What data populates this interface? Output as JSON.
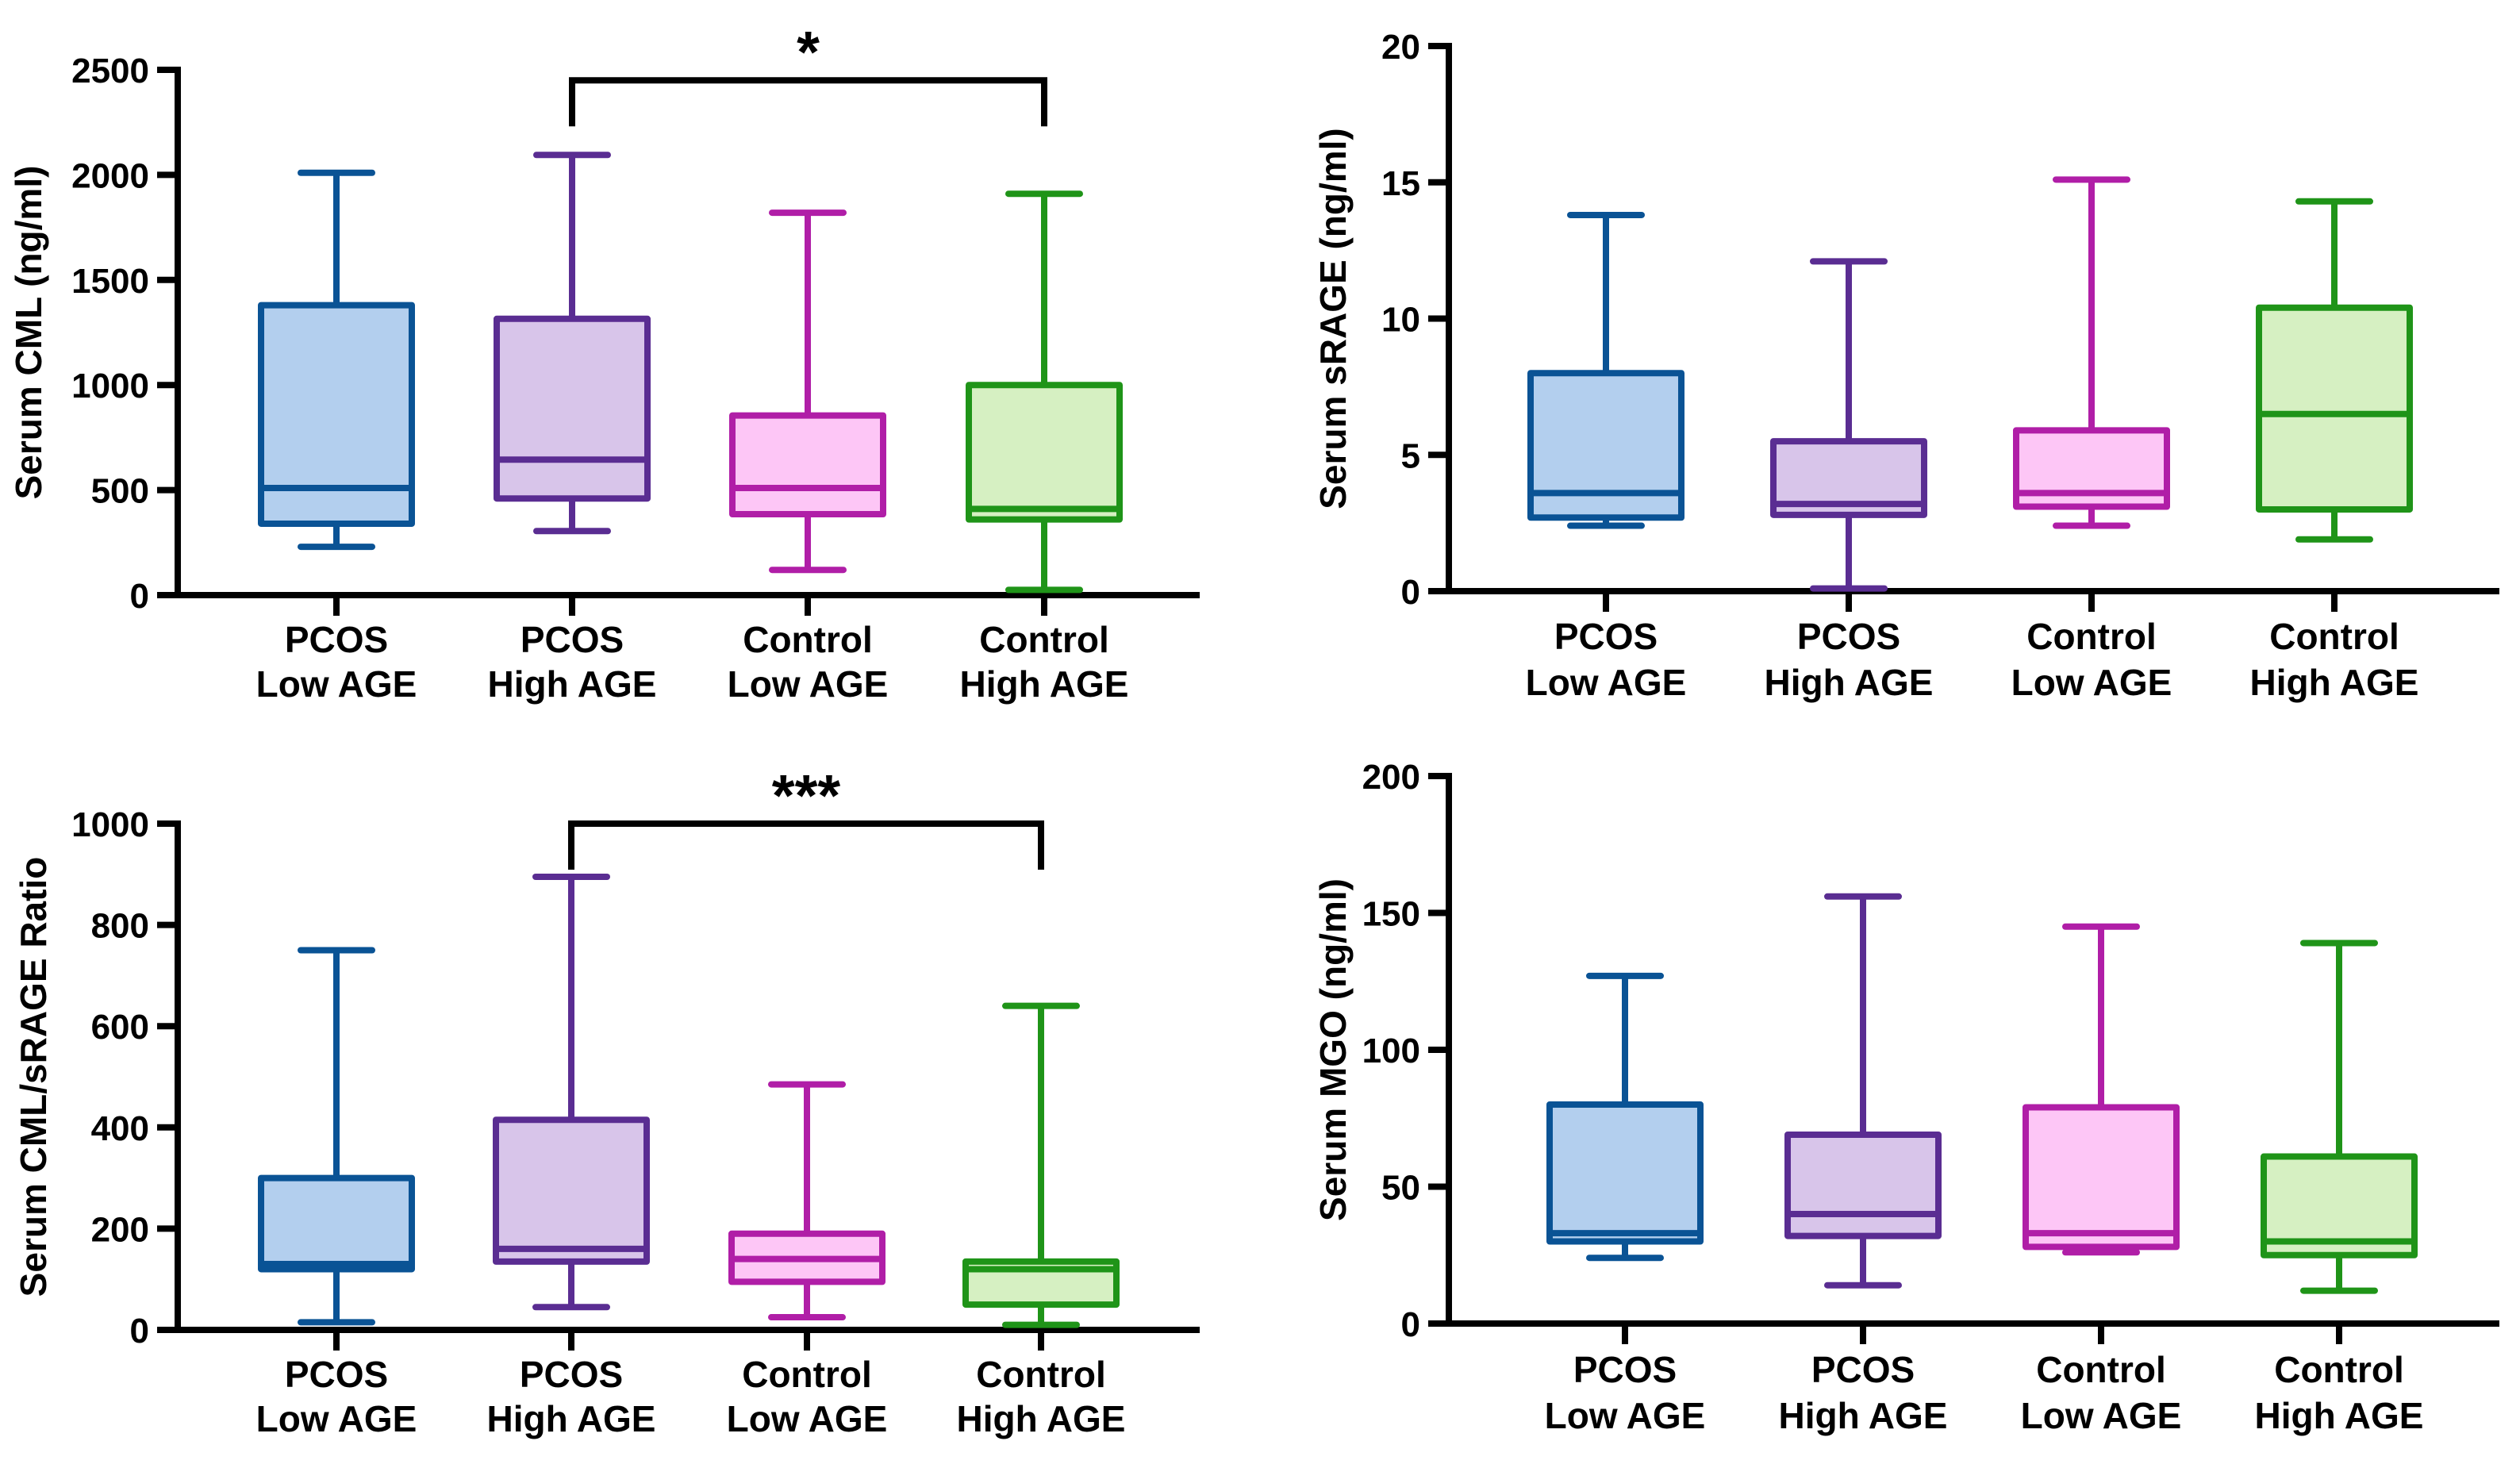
{
  "colors": {
    "axis": "#000000",
    "groups": [
      {
        "stroke": "#0a5395",
        "fill": "#b3cfee"
      },
      {
        "stroke": "#5a2d92",
        "fill": "#d8c5ea"
      },
      {
        "stroke": "#b01ea7",
        "fill": "#fdc6f6"
      },
      {
        "stroke": "#1f9418",
        "fill": "#d6f0c2"
      }
    ]
  },
  "chart_data": [
    {
      "type": "box",
      "ylabel": "Serum CML (ng/ml)",
      "ylim": [
        0,
        2500
      ],
      "yticks": [
        "0",
        "500",
        "1000",
        "1500",
        "2000",
        "2500"
      ],
      "yticks_values": [
        0,
        500,
        1000,
        1500,
        2000,
        2500
      ],
      "categories": [
        {
          "line1": "PCOS",
          "line2": "Low AGE"
        },
        {
          "line1": "PCOS",
          "line2": "High AGE"
        },
        {
          "line1": "Control",
          "line2": "Low AGE"
        },
        {
          "line1": "Control",
          "line2": "High AGE"
        }
      ],
      "boxes": [
        {
          "min": 230,
          "q1": 340,
          "median": 510,
          "q3": 1380,
          "max": 2010
        },
        {
          "min": 305,
          "q1": 460,
          "median": 645,
          "q3": 1315,
          "max": 2095
        },
        {
          "min": 120,
          "q1": 385,
          "median": 510,
          "q3": 855,
          "max": 1820
        },
        {
          "min": 25,
          "q1": 360,
          "median": 410,
          "q3": 1000,
          "max": 1910
        }
      ],
      "significance": {
        "from": 1,
        "to": 3,
        "label": "*",
        "y": 2450
      }
    },
    {
      "type": "box",
      "ylabel": "Serum sRAGE (ng/ml)",
      "ylim": [
        0,
        20
      ],
      "yticks": [
        "0",
        "5",
        "10",
        "15",
        "20"
      ],
      "yticks_values": [
        0,
        5,
        10,
        15,
        20
      ],
      "categories": [
        {
          "line1": "PCOS",
          "line2": "Low AGE"
        },
        {
          "line1": "PCOS",
          "line2": "High AGE"
        },
        {
          "line1": "Control",
          "line2": "Low AGE"
        },
        {
          "line1": "Control",
          "line2": "High AGE"
        }
      ],
      "boxes": [
        {
          "min": 2.4,
          "q1": 2.7,
          "median": 3.6,
          "q3": 8.0,
          "max": 13.8
        },
        {
          "min": 0.1,
          "q1": 2.8,
          "median": 3.2,
          "q3": 5.5,
          "max": 12.1
        },
        {
          "min": 2.4,
          "q1": 3.1,
          "median": 3.6,
          "q3": 5.9,
          "max": 15.1
        },
        {
          "min": 1.9,
          "q1": 3.0,
          "median": 6.5,
          "q3": 10.4,
          "max": 14.3
        }
      ]
    },
    {
      "type": "box",
      "ylabel": "Serum CML/sRAGE Ratio",
      "ylim": [
        0,
        1000
      ],
      "yticks": [
        "0",
        "200",
        "400",
        "600",
        "800",
        "1000"
      ],
      "yticks_values": [
        0,
        200,
        400,
        600,
        800,
        1000
      ],
      "categories": [
        {
          "line1": "PCOS",
          "line2": "Low AGE"
        },
        {
          "line1": "PCOS",
          "line2": "High AGE"
        },
        {
          "line1": "Control",
          "line2": "Low AGE"
        },
        {
          "line1": "Control",
          "line2": "High AGE"
        }
      ],
      "boxes": [
        {
          "min": 15,
          "q1": 120,
          "median": 130,
          "q3": 300,
          "max": 750
        },
        {
          "min": 45,
          "q1": 135,
          "median": 160,
          "q3": 415,
          "max": 895
        },
        {
          "min": 25,
          "q1": 95,
          "median": 140,
          "q3": 190,
          "max": 485
        },
        {
          "min": 10,
          "q1": 50,
          "median": 120,
          "q3": 135,
          "max": 640
        }
      ],
      "significance": {
        "from": 1,
        "to": 3,
        "label": "***",
        "y": 1000
      }
    },
    {
      "type": "box",
      "ylabel": "Serum MGO (ng/ml)",
      "ylim": [
        0,
        200
      ],
      "yticks": [
        "0",
        "50",
        "100",
        "150",
        "200"
      ],
      "yticks_values": [
        0,
        50,
        100,
        150,
        200
      ],
      "categories": [
        {
          "line1": "PCOS",
          "line2": "Low AGE"
        },
        {
          "line1": "PCOS",
          "line2": "High AGE"
        },
        {
          "line1": "Control",
          "line2": "Low AGE"
        },
        {
          "line1": "Control",
          "line2": "High AGE"
        }
      ],
      "boxes": [
        {
          "min": 24,
          "q1": 30,
          "median": 33,
          "q3": 80,
          "max": 127
        },
        {
          "min": 14,
          "q1": 32,
          "median": 40,
          "q3": 69,
          "max": 156
        },
        {
          "min": 26,
          "q1": 28,
          "median": 33,
          "q3": 79,
          "max": 145
        },
        {
          "min": 12,
          "q1": 25,
          "median": 30,
          "q3": 61,
          "max": 139
        }
      ]
    }
  ]
}
